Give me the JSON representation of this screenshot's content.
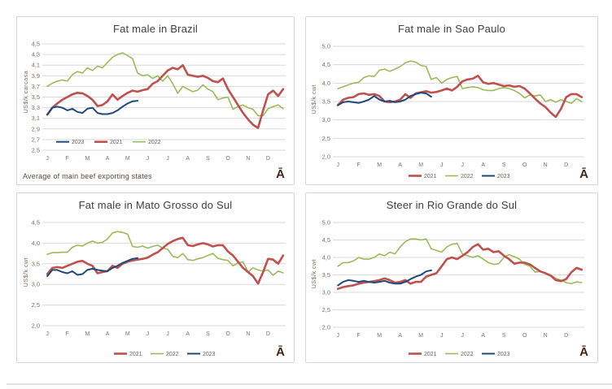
{
  "months": [
    "J",
    "F",
    "M",
    "A",
    "M",
    "J",
    "J",
    "A",
    "S",
    "O",
    "N",
    "D"
  ],
  "watermark": "Ā",
  "colors": {
    "red_2021": "#C0504D",
    "green_2022": "#9BBB59",
    "blue_2023": "#1F497D",
    "gridline": "#D9D9D9",
    "tick_text": "#7D7164",
    "legend_text": "#6B6257",
    "title_text": "#3F3F3F",
    "footnote_text": "#5A4A3F",
    "watermark_color": "#40261A",
    "panel_border": "#D6D6D6"
  },
  "chart_data": [
    {
      "type": "line",
      "title": "Fat male in Brazil",
      "ylabel": "US$/k carcasa",
      "footnote": "Average  of main beef exporting states",
      "ylim": [
        2.5,
        4.5
      ],
      "ytick_step": 0.2,
      "ytick_labels": [
        "2,5",
        "2,7",
        "2,9",
        "3,1",
        "3,3",
        "3,5",
        "3,7",
        "3,9",
        "4,1",
        "4,3",
        "4,5"
      ],
      "x_unit": "weekly, Jan-Dec",
      "legend": {
        "position": "inside",
        "items": [
          "2023",
          "2021",
          "2022"
        ]
      },
      "series": [
        {
          "name": "2021",
          "color_key": "red_2021",
          "width": 2.6,
          "values": [
            3.17,
            3.3,
            3.38,
            3.45,
            3.5,
            3.55,
            3.58,
            3.57,
            3.52,
            3.45,
            3.33,
            3.35,
            3.42,
            3.55,
            3.45,
            3.52,
            3.58,
            3.62,
            3.6,
            3.63,
            3.65,
            3.75,
            3.8,
            3.9,
            4.0,
            4.05,
            4.02,
            4.1,
            3.92,
            3.9,
            3.88,
            3.9,
            3.86,
            3.8,
            3.78,
            3.85,
            3.65,
            3.5,
            3.35,
            3.2,
            3.08,
            2.98,
            2.92,
            3.25,
            3.55,
            3.62,
            3.52,
            3.65
          ]
        },
        {
          "name": "2022",
          "color_key": "green_2022",
          "width": 1.6,
          "values": [
            3.7,
            3.76,
            3.8,
            3.82,
            3.8,
            3.92,
            3.98,
            3.95,
            4.05,
            4.0,
            4.08,
            4.05,
            4.15,
            4.25,
            4.3,
            4.33,
            4.28,
            4.22,
            3.95,
            3.9,
            3.92,
            3.85,
            3.9,
            3.8,
            3.9,
            3.75,
            3.57,
            3.7,
            3.65,
            3.6,
            3.63,
            3.73,
            3.65,
            3.6,
            3.45,
            3.48,
            3.5,
            3.27,
            3.32,
            3.35,
            3.3,
            3.27,
            3.15,
            3.15,
            3.28,
            3.32,
            3.35,
            3.28
          ]
        },
        {
          "name": "2023",
          "color_key": "blue_2023",
          "width": 2.0,
          "values": [
            3.17,
            3.3,
            3.32,
            3.3,
            3.25,
            3.28,
            3.22,
            3.2,
            3.28,
            3.3,
            3.2,
            3.18,
            3.18,
            3.2,
            3.25,
            3.32,
            3.38,
            3.42,
            3.43
          ]
        }
      ]
    },
    {
      "type": "line",
      "title": "Fat male in Sao Paulo",
      "ylabel": "US$/k cwt",
      "ylim": [
        2.0,
        5.0
      ],
      "ytick_step": 0.5,
      "ytick_labels": [
        "2,0",
        "2,5",
        "3,0",
        "3,5",
        "4,0",
        "4,5",
        "5,0"
      ],
      "x_unit": "weekly, Jan-Dec",
      "legend": {
        "position": "below",
        "items": [
          "2021",
          "2022",
          "2023"
        ]
      },
      "series": [
        {
          "name": "2021",
          "color_key": "red_2021",
          "width": 2.6,
          "values": [
            3.4,
            3.55,
            3.6,
            3.62,
            3.7,
            3.72,
            3.68,
            3.7,
            3.65,
            3.5,
            3.48,
            3.5,
            3.55,
            3.7,
            3.6,
            3.72,
            3.75,
            3.78,
            3.74,
            3.76,
            3.8,
            3.85,
            3.8,
            3.9,
            4.05,
            4.1,
            4.12,
            4.2,
            4.02,
            3.98,
            4.0,
            3.96,
            3.92,
            3.94,
            3.9,
            3.92,
            3.85,
            3.72,
            3.58,
            3.45,
            3.35,
            3.2,
            3.08,
            3.3,
            3.62,
            3.7,
            3.7,
            3.62
          ]
        },
        {
          "name": "2022",
          "color_key": "green_2022",
          "width": 1.6,
          "values": [
            3.85,
            3.9,
            3.95,
            4.0,
            4.02,
            4.15,
            4.2,
            4.18,
            4.35,
            4.38,
            4.32,
            4.38,
            4.45,
            4.55,
            4.6,
            4.57,
            4.48,
            4.45,
            4.1,
            4.15,
            4.0,
            4.1,
            4.15,
            4.18,
            3.85,
            3.88,
            3.9,
            3.88,
            3.82,
            3.8,
            3.8,
            3.85,
            3.88,
            3.85,
            3.8,
            3.72,
            3.6,
            3.68,
            3.65,
            3.68,
            3.5,
            3.55,
            3.48,
            3.55,
            3.5,
            3.45,
            3.58,
            3.5
          ]
        },
        {
          "name": "2023",
          "color_key": "blue_2023",
          "width": 2.0,
          "values": [
            3.4,
            3.48,
            3.5,
            3.48,
            3.46,
            3.5,
            3.55,
            3.65,
            3.55,
            3.5,
            3.52,
            3.48,
            3.5,
            3.55,
            3.65,
            3.7,
            3.74,
            3.72,
            3.63
          ]
        }
      ]
    },
    {
      "type": "line",
      "title": "Fat male in Mato Grosso do Sul",
      "ylabel": "US$/k cwt",
      "ylim": [
        2.0,
        4.5
      ],
      "ytick_step": 0.5,
      "ytick_labels": [
        "2,0",
        "2,5",
        "3,0",
        "3,5",
        "4,0",
        "4,5"
      ],
      "x_unit": "weekly, Jan-Dec",
      "legend": {
        "position": "below",
        "items": [
          "2021",
          "2022",
          "2023"
        ]
      },
      "series": [
        {
          "name": "2021",
          "color_key": "red_2021",
          "width": 2.6,
          "values": [
            3.25,
            3.4,
            3.42,
            3.4,
            3.45,
            3.5,
            3.55,
            3.57,
            3.5,
            3.45,
            3.27,
            3.3,
            3.32,
            3.45,
            3.4,
            3.5,
            3.55,
            3.58,
            3.6,
            3.62,
            3.65,
            3.72,
            3.78,
            3.88,
            3.98,
            4.05,
            4.1,
            4.13,
            3.95,
            3.93,
            3.97,
            4.0,
            3.97,
            3.92,
            3.95,
            3.95,
            3.8,
            3.7,
            3.55,
            3.4,
            3.3,
            3.2,
            3.02,
            3.3,
            3.62,
            3.6,
            3.5,
            3.7
          ]
        },
        {
          "name": "2022",
          "color_key": "green_2022",
          "width": 1.6,
          "values": [
            3.73,
            3.77,
            3.77,
            3.78,
            3.78,
            3.9,
            3.95,
            3.93,
            4.0,
            4.05,
            4.0,
            4.02,
            4.1,
            4.25,
            4.28,
            4.26,
            4.22,
            3.92,
            3.9,
            3.93,
            3.88,
            3.92,
            3.95,
            3.88,
            3.85,
            3.68,
            3.65,
            3.75,
            3.6,
            3.58,
            3.62,
            3.65,
            3.7,
            3.75,
            3.63,
            3.6,
            3.58,
            3.45,
            3.52,
            3.55,
            3.3,
            3.4,
            3.35,
            3.32,
            3.35,
            3.22,
            3.32,
            3.28
          ]
        },
        {
          "name": "2023",
          "color_key": "blue_2023",
          "width": 2.0,
          "values": [
            3.2,
            3.35,
            3.35,
            3.3,
            3.27,
            3.32,
            3.23,
            3.25,
            3.35,
            3.38,
            3.35,
            3.33,
            3.32,
            3.4,
            3.45,
            3.52,
            3.57,
            3.62,
            3.64
          ]
        }
      ]
    },
    {
      "type": "line",
      "title": "Steer  in Rio Grande do Sul",
      "ylabel": "US$/k cwt",
      "ylim": [
        2.0,
        5.0
      ],
      "ytick_step": 0.5,
      "ytick_labels": [
        "2,0",
        "2,5",
        "3,0",
        "3,5",
        "4,0",
        "4,5",
        "5,0"
      ],
      "x_unit": "weekly, Jan-Dec",
      "legend": {
        "position": "below",
        "items": [
          "2021",
          "2022",
          "2023"
        ]
      },
      "series": [
        {
          "name": "2021",
          "color_key": "red_2021",
          "width": 2.6,
          "values": [
            3.1,
            3.15,
            3.18,
            3.2,
            3.25,
            3.28,
            3.3,
            3.32,
            3.35,
            3.4,
            3.35,
            3.28,
            3.3,
            3.35,
            3.25,
            3.3,
            3.3,
            3.45,
            3.5,
            3.55,
            3.75,
            3.95,
            4.0,
            3.95,
            4.05,
            4.15,
            4.3,
            4.38,
            4.22,
            4.25,
            4.15,
            4.18,
            4.05,
            3.95,
            3.82,
            3.85,
            3.85,
            3.8,
            3.7,
            3.6,
            3.55,
            3.48,
            3.35,
            3.32,
            3.38,
            3.58,
            3.7,
            3.65
          ]
        },
        {
          "name": "2022",
          "color_key": "green_2022",
          "width": 1.6,
          "values": [
            3.75,
            3.85,
            3.85,
            3.9,
            4.0,
            3.95,
            3.95,
            4.0,
            4.1,
            4.05,
            4.15,
            4.1,
            4.3,
            4.45,
            4.53,
            4.53,
            4.5,
            4.53,
            4.25,
            4.2,
            4.15,
            4.3,
            4.38,
            4.4,
            4.1,
            4.05,
            4.0,
            4.05,
            3.95,
            3.85,
            3.8,
            3.82,
            4.0,
            4.08,
            4.02,
            3.95,
            3.8,
            3.75,
            3.58,
            3.6,
            3.55,
            3.5,
            3.4,
            3.35,
            3.28,
            3.25,
            3.3,
            3.28
          ]
        },
        {
          "name": "2023",
          "color_key": "blue_2023",
          "width": 2.0,
          "values": [
            3.2,
            3.3,
            3.35,
            3.33,
            3.3,
            3.33,
            3.3,
            3.28,
            3.3,
            3.33,
            3.28,
            3.25,
            3.25,
            3.3,
            3.38,
            3.45,
            3.5,
            3.6,
            3.63
          ]
        }
      ]
    }
  ]
}
